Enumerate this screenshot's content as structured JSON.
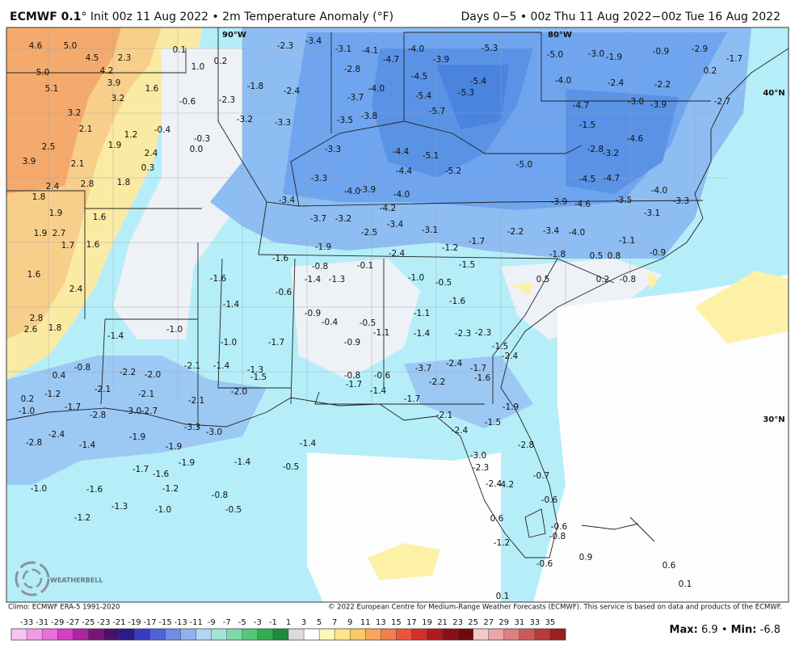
{
  "header": {
    "model": "ECMWF 0.1",
    "description": "° Init 00z 11 Aug 2022 • 2m Temperature Anomaly (°F)",
    "period": "Days 0−5 • 00z Thu 11 Aug 2022−00z Tue 16 Aug 2022"
  },
  "grid_labels": [
    "90°W",
    "80°W",
    "40°N",
    "30°N"
  ],
  "logo": "WEATHERBELL",
  "footer": {
    "climo": "Climo: ECMWF ERA-5 1991-2020",
    "copyright": "© 2022 European Centre for Medium-Range Weather Forecasts (ECMWF). This service is based on data and products of the ECMWF."
  },
  "stats": {
    "max_label": "Max:",
    "max": 6.9,
    "separator": "•",
    "min_label": "Min:",
    "min": -6.8
  },
  "colorbar": {
    "ticks": [
      -33,
      -31,
      -29,
      -27,
      -25,
      -23,
      -21,
      -19,
      -17,
      -15,
      -13,
      -11,
      -9,
      -7,
      -5,
      -3,
      -1,
      1,
      3,
      5,
      7,
      9,
      11,
      13,
      15,
      17,
      19,
      21,
      23,
      25,
      27,
      29,
      31,
      33,
      35
    ],
    "colors": [
      "#f7c6f0",
      "#f29be6",
      "#ea6fd9",
      "#d63fc4",
      "#b0249f",
      "#7d137a",
      "#4a0f6b",
      "#2a1a8a",
      "#3a3bc4",
      "#4f62d8",
      "#6d8de6",
      "#8fb2ef",
      "#b4d3f5",
      "#9fe6d6",
      "#7fd9a8",
      "#56c77a",
      "#2fae52",
      "#1a8c3a",
      "#dcdce0",
      "#ffffff",
      "#fff6b8",
      "#fde58a",
      "#fbc96a",
      "#f8a65a",
      "#f2804a",
      "#e8553a",
      "#d42f2a",
      "#b01a1e",
      "#8a0f14",
      "#6b0a0f",
      "#f4c9c9",
      "#eaa6a6",
      "#dc8080",
      "#cc5a5a",
      "#b83a3a",
      "#9a1f1f"
    ]
  },
  "map": {
    "values": [
      4.6,
      5,
      4.5,
      2.3,
      4.2,
      5,
      3.9,
      1.6,
      3.2,
      5.1,
      3.2,
      2.1,
      1.2,
      -0.4,
      2.5,
      1.9,
      2.4,
      3.9,
      2.1,
      0.3,
      2.4,
      2.8,
      1.8,
      1.8,
      1.9,
      1.6,
      1.9,
      2.7,
      1.7,
      1.6,
      1.6,
      2.4,
      2.8,
      2.6,
      1.8,
      0.1,
      1,
      0.2,
      -0.6,
      -0.3,
      0,
      -2.3,
      -3.4,
      -3.1,
      -4.1,
      -4.7,
      -4,
      -5.3,
      -3.9,
      -5,
      -3,
      -1.9,
      -0.9,
      -2.9,
      -2.8,
      -4.5,
      -5.4,
      -4,
      -2.4,
      -2.2,
      -4,
      -3.7,
      -5.3,
      -5.4,
      -5.7,
      -3.3,
      -3.2,
      -2.3,
      -1.8,
      -2.4,
      -3.5,
      -3.8,
      -3,
      -3.9,
      -1.5,
      -4.6,
      -2.8,
      -3.2,
      -5,
      -5.2,
      -4.4,
      -5.1,
      -4.4,
      -3.3,
      -3.3,
      -4,
      -3.9,
      -4,
      -4.5,
      -4.7,
      -3.9,
      -4.6,
      -3.5,
      -3.1,
      -4.2,
      -3.7,
      -3.2,
      -3.4,
      -3.1,
      -2.5,
      -2.2,
      -3.4,
      -4,
      -1.7,
      -1.2,
      -1.9,
      -2.4,
      -1.8,
      -1.1,
      0.5,
      0.8,
      -0.9,
      -1.6,
      -0.8,
      -0.1,
      -1.5,
      0.5,
      0.2,
      -0.8,
      -1.4,
      -1.3,
      -1,
      -0.5,
      -1.6,
      -0.9,
      -0.4,
      -0.5,
      -1.1,
      -1.4,
      -1.6,
      -0.6,
      -1,
      -1.4,
      -1,
      -1.7,
      -0.9,
      -1.1,
      -1.4,
      -2.3,
      -2.3,
      -1.5,
      -2.4,
      -2.4,
      -1.7,
      -1.6,
      -3.7,
      -2.2,
      -0.8,
      -0.6,
      -1.7,
      -1.4,
      -1.3,
      -1.5,
      -1.4,
      -2.1,
      -2.2,
      -2,
      -0.8,
      0.4,
      -2.1,
      -2.1,
      -1.2,
      0.2,
      -1,
      -1.7,
      -2.8,
      -3,
      -2.7,
      -2.1,
      -2,
      -1.7,
      -1.9,
      -2.1,
      -1.5,
      -2.4,
      -3.3,
      -3,
      -2.4,
      -2.8,
      -1.9,
      -1.4,
      -1.9,
      -1.4,
      -2.8,
      -3,
      -2.3,
      -1.9,
      -1.4,
      -0.5,
      -1.7,
      -1.6,
      -0.7,
      -1,
      -1.6,
      -1.2,
      -0.8,
      -2.4,
      -4.2,
      -0.6,
      -1.3,
      -0.5,
      -1,
      -1.2,
      0.6,
      -0.6,
      -0.8,
      -1.2,
      0.9,
      -0.6,
      0.6,
      0.1,
      0.1,
      0.2,
      -1.7,
      -2.7,
      -4.7,
      -4,
      -3.3,
      -3.4
    ],
    "value_labels": [
      "4.6",
      "5.0",
      "4.5",
      "2.3",
      "4.2",
      "5.0",
      "3.9",
      "1.6",
      "3.2",
      "5.1",
      "3.2",
      "2.1",
      "1.2",
      "-0.4",
      "2.5",
      "1.9",
      "2.4",
      "3.9",
      "2.1",
      "0.3",
      "2.4",
      "2.8",
      "1.8",
      "1.8",
      "1.9",
      "1.6",
      "1.9",
      "2.7",
      "1.7",
      "1.6",
      "1.6",
      "2.4",
      "2.8",
      "2.6",
      "1.8",
      "0.1",
      "1.0",
      "0.2",
      "-0.6",
      "-0.3",
      "0.0",
      "-2.3",
      "-3.4",
      "-3.1",
      "-4.1",
      "-4.7",
      "-4.0",
      "-5.3",
      "-3.9",
      "-5.0",
      "-3.0",
      "-1.9",
      "-0.9",
      "-2.9",
      "-2.8",
      "-4.5",
      "-5.4",
      "-4.0",
      "-2.4",
      "-2.2",
      "-4.0",
      "-3.7",
      "-5.3",
      "-5.4",
      "-5.7",
      "-3.3",
      "-3.2",
      "-2.3",
      "-1.8",
      "-2.4",
      "-3.5",
      "-3.8",
      "-3.0",
      "-3.9",
      "-1.5",
      "-4.6",
      "-2.8",
      "-3.2",
      "-5.0",
      "-5.2",
      "-4.4",
      "-5.1",
      "-4.4",
      "-3.3",
      "-3.3",
      "-4.0",
      "-3.9",
      "-4.0",
      "-4.5",
      "-4.7",
      "-3.9",
      "-4.6",
      "-3.5",
      "-3.1",
      "-4.2",
      "-3.7",
      "-3.2",
      "-3.4",
      "-3.1",
      "-2.5",
      "-2.2",
      "-3.4",
      "-4.0",
      "-1.7",
      "-1.2",
      "-1.9",
      "-2.4",
      "-1.8",
      "-1.1",
      "0.5",
      "0.8",
      "-0.9",
      "-1.6",
      "-0.8",
      "-0.1",
      "-1.5",
      "0.5",
      "0.2",
      "-0.8",
      "-1.4",
      "-1.3",
      "-1.0",
      "-0.5",
      "-1.6",
      "-0.9",
      "-0.4",
      "-0.5",
      "-1.1",
      "-1.4",
      "-1.6",
      "-0.6",
      "-1.0",
      "-1.4",
      "-1.0",
      "-1.7",
      "-0.9",
      "-1.1",
      "-1.4",
      "-2.3",
      "-2.3",
      "-1.5",
      "-2.4",
      "-2.4",
      "-1.7",
      "-1.6",
      "-3.7",
      "-2.2",
      "-0.8",
      "-0.6",
      "-1.7",
      "-1.4",
      "-1.3",
      "-1.5",
      "-1.4",
      "-2.1",
      "-2.2",
      "-2.0",
      "-0.8",
      "0.4",
      "-2.1",
      "-2.1",
      "-1.2",
      "0.2",
      "-1.0",
      "-1.7",
      "-2.8",
      "-3.0",
      "-2.7",
      "-2.1",
      "-2.0",
      "-1.7",
      "-1.9",
      "-2.1",
      "-1.5",
      "-2.4",
      "-3.3",
      "-3.0",
      "-2.4",
      "-2.8",
      "-1.9",
      "-1.4",
      "-1.9",
      "-1.4",
      "-2.8",
      "-3.0",
      "-2.3",
      "-1.9",
      "-1.4",
      "-0.5",
      "-1.7",
      "-1.6",
      "-0.7",
      "-1.0",
      "-1.6",
      "-1.2",
      "-0.8",
      "-2.4",
      "-4.2",
      "-0.6",
      "-1.3",
      "-0.5",
      "-1.0",
      "-1.2",
      "0.6",
      "-0.6",
      "-0.8",
      "-1.2",
      "0.9",
      "-0.6",
      "0.6",
      "0.1",
      "0.1",
      "0.2",
      "-1.7",
      "-2.7",
      "-4.7",
      "-4.0",
      "-3.3",
      "-3.4"
    ]
  }
}
